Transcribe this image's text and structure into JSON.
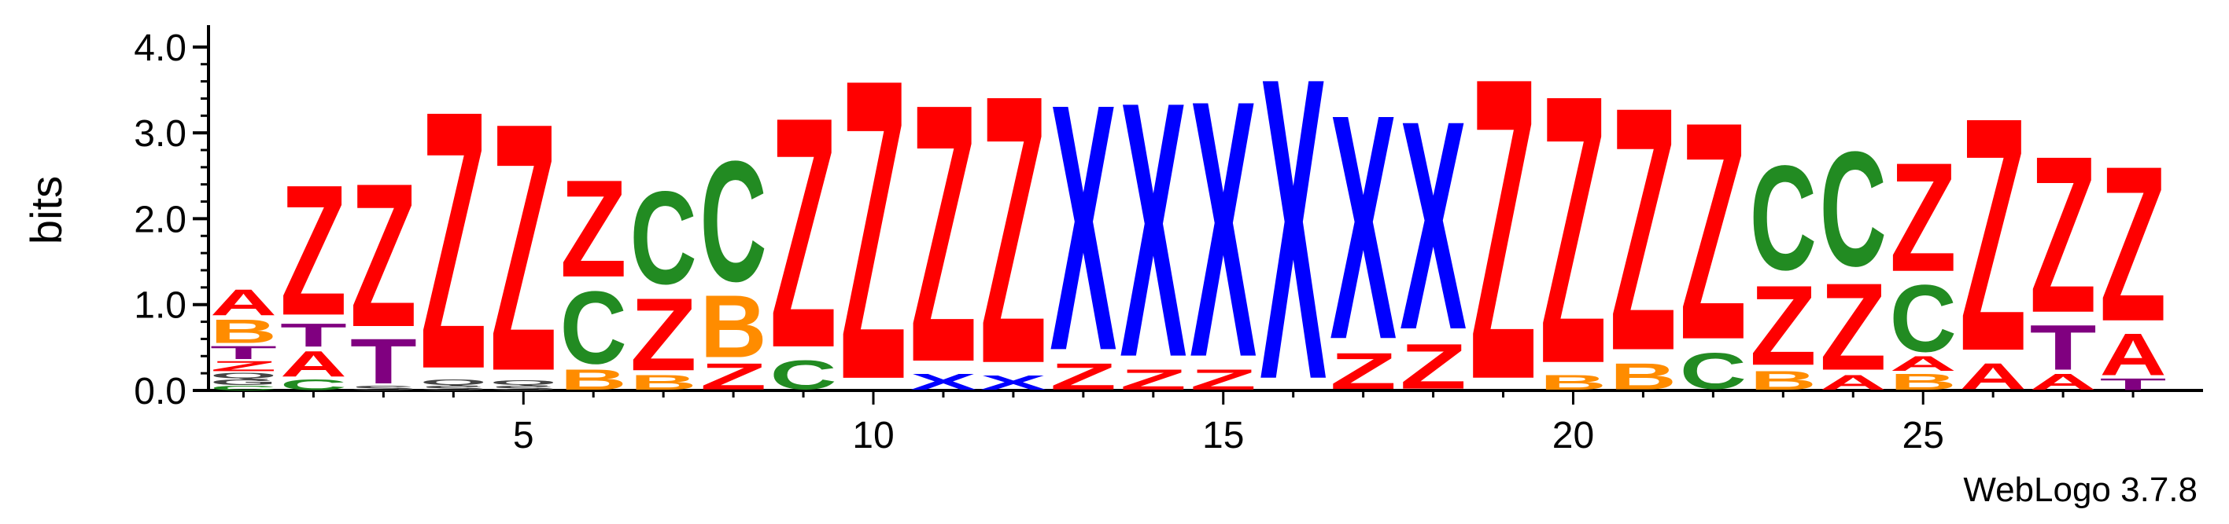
{
  "chart_data": {
    "type": "sequence-logo",
    "ylabel": "bits",
    "ylim": [
      0,
      4.2
    ],
    "yticks": [
      "0.0",
      "1.0",
      "2.0",
      "3.0",
      "4.0"
    ],
    "xticks": [
      5,
      10,
      15,
      20,
      25
    ],
    "colors": {
      "A": "#ff0000",
      "T": "#800080",
      "B": "#ff8c00",
      "C": "#228b22",
      "Z": "#ff0000",
      "X": "#0000ff"
    },
    "positions": [
      {
        "pos": 1,
        "stack": [
          [
            "C",
            0.06
          ],
          [
            "G",
            0.08
          ],
          [
            "Q",
            0.08
          ],
          [
            "Z",
            0.14
          ],
          [
            "T",
            0.18
          ],
          [
            "B",
            0.32
          ],
          [
            "A",
            0.36
          ]
        ]
      },
      {
        "pos": 2,
        "stack": [
          [
            "C",
            0.15
          ],
          [
            "A",
            0.35
          ],
          [
            "T",
            0.32
          ],
          [
            "Z",
            1.8
          ]
        ]
      },
      {
        "pos": 3,
        "stack": [
          [
            "S",
            0.06
          ],
          [
            "T",
            0.62
          ],
          [
            "Z",
            1.98
          ]
        ]
      },
      {
        "pos": 4,
        "stack": [
          [
            "S",
            0.06
          ],
          [
            "Q",
            0.08
          ],
          [
            "Z",
            3.56
          ]
        ]
      },
      {
        "pos": 5,
        "stack": [
          [
            "S",
            0.06
          ],
          [
            "Q",
            0.06
          ],
          [
            "Z",
            3.42
          ]
        ]
      },
      {
        "pos": 6,
        "stack": [
          [
            "B",
            0.28
          ],
          [
            "C",
            1.0
          ],
          [
            "Z",
            1.34
          ]
        ]
      },
      {
        "pos": 7,
        "stack": [
          [
            "B",
            0.2
          ],
          [
            "Z",
            1.0
          ],
          [
            "C",
            1.28
          ]
        ]
      },
      {
        "pos": 8,
        "stack": [
          [
            "Z",
            0.36
          ],
          [
            "B",
            0.86
          ],
          [
            "C",
            1.66
          ]
        ]
      },
      {
        "pos": 9,
        "stack": [
          [
            "C",
            0.4
          ],
          [
            "Z",
            3.18
          ]
        ]
      },
      {
        "pos": 10,
        "stack": [
          [
            "Z",
            4.14
          ]
        ]
      },
      {
        "pos": 11,
        "stack": [
          [
            "X",
            0.22
          ],
          [
            "Z",
            3.56
          ]
        ]
      },
      {
        "pos": 12,
        "stack": [
          [
            "X",
            0.2
          ],
          [
            "Z",
            3.7
          ]
        ]
      },
      {
        "pos": 13,
        "stack": [
          [
            "Z",
            0.36
          ],
          [
            "X",
            3.4
          ]
        ]
      },
      {
        "pos": 14,
        "stack": [
          [
            "Z",
            0.28
          ],
          [
            "X",
            3.52
          ]
        ]
      },
      {
        "pos": 15,
        "stack": [
          [
            "Z",
            0.28
          ],
          [
            "X",
            3.54
          ]
        ]
      },
      {
        "pos": 16,
        "stack": [
          [
            "X",
            4.16
          ]
        ]
      },
      {
        "pos": 17,
        "stack": [
          [
            "Z",
            0.5
          ],
          [
            "X",
            3.1
          ]
        ]
      },
      {
        "pos": 18,
        "stack": [
          [
            "Z",
            0.62
          ],
          [
            "X",
            2.88
          ]
        ]
      },
      {
        "pos": 19,
        "stack": [
          [
            "Z",
            4.16
          ]
        ]
      },
      {
        "pos": 20,
        "stack": [
          [
            "B",
            0.2
          ],
          [
            "Z",
            3.7
          ]
        ]
      },
      {
        "pos": 21,
        "stack": [
          [
            "B",
            0.36
          ],
          [
            "Z",
            3.36
          ]
        ]
      },
      {
        "pos": 22,
        "stack": [
          [
            "C",
            0.5
          ],
          [
            "Z",
            3.0
          ]
        ]
      },
      {
        "pos": 23,
        "stack": [
          [
            "B",
            0.26
          ],
          [
            "Z",
            1.1
          ],
          [
            "C",
            1.44
          ]
        ]
      },
      {
        "pos": 24,
        "stack": [
          [
            "A",
            0.2
          ],
          [
            "Z",
            1.2
          ],
          [
            "C",
            1.58
          ]
        ]
      },
      {
        "pos": 25,
        "stack": [
          [
            "B",
            0.22
          ],
          [
            "A",
            0.2
          ],
          [
            "C",
            0.92
          ],
          [
            "Z",
            1.5
          ]
        ]
      },
      {
        "pos": 26,
        "stack": [
          [
            "A",
            0.36
          ],
          [
            "Z",
            3.22
          ]
        ]
      },
      {
        "pos": 27,
        "stack": [
          [
            "A",
            0.22
          ],
          [
            "T",
            0.62
          ],
          [
            "Z",
            2.16
          ]
        ]
      },
      {
        "pos": 28,
        "stack": [
          [
            "T",
            0.16
          ],
          [
            "A",
            0.58
          ],
          [
            "Z",
            2.14
          ]
        ]
      }
    ]
  },
  "footer": {
    "credit": "WebLogo 3.7.8"
  }
}
